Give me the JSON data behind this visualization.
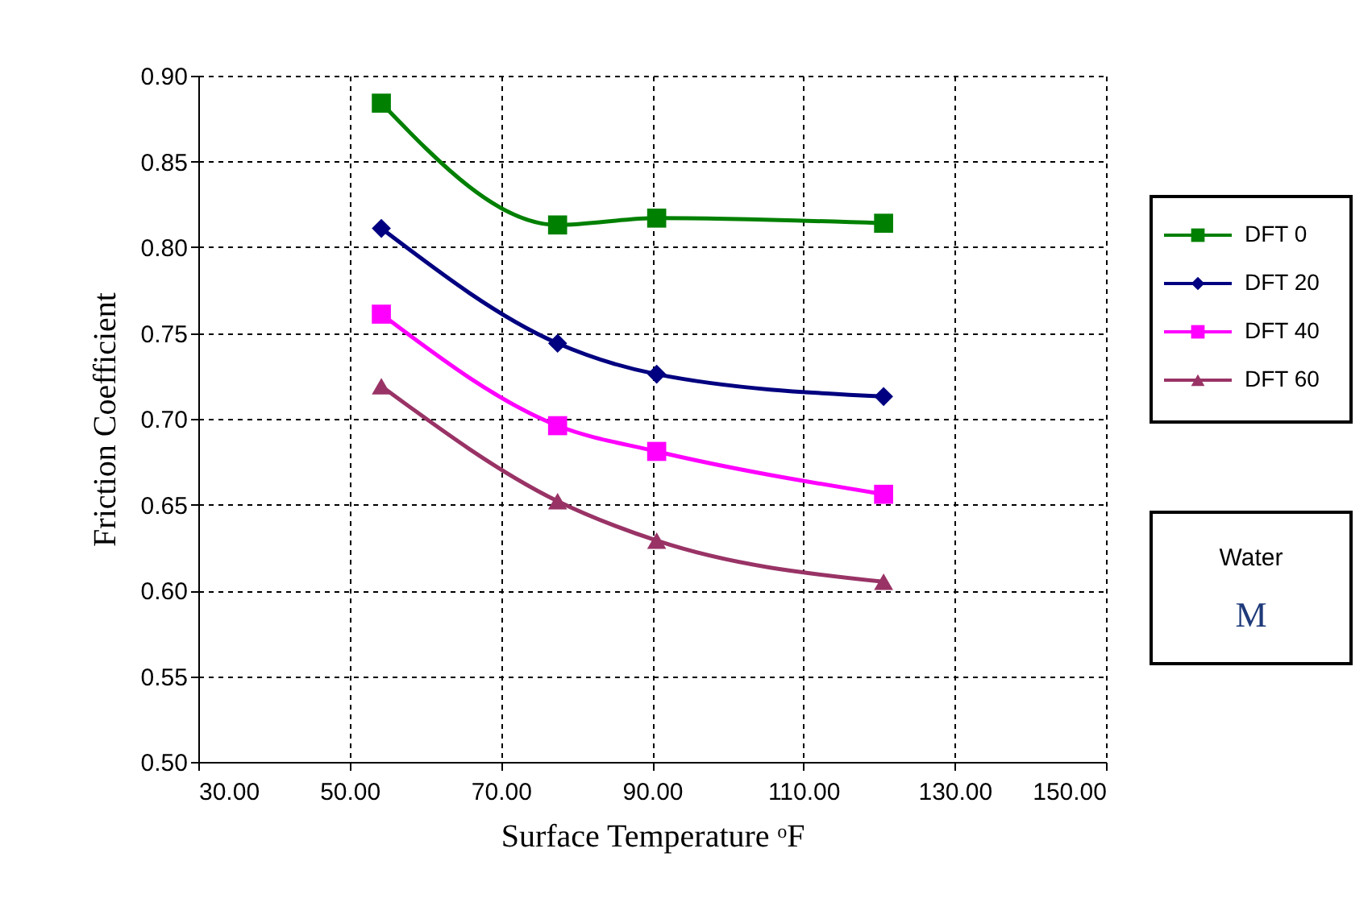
{
  "chart_data": {
    "type": "line",
    "xlabel": "Surface Temperature ᵒF",
    "ylabel": "Friction Coefficient",
    "x": [
      54.2,
      77.5,
      90.6,
      120.6
    ],
    "series": [
      {
        "name": "DFT 0",
        "color": "#008000",
        "marker": "square",
        "values": [
          0.884,
          0.813,
          0.817,
          0.814
        ]
      },
      {
        "name": "DFT 20",
        "color": "#000080",
        "marker": "diamond",
        "values": [
          0.811,
          0.744,
          0.726,
          0.713
        ]
      },
      {
        "name": "DFT 40",
        "color": "#ff00ff",
        "marker": "square",
        "values": [
          0.761,
          0.696,
          0.681,
          0.656
        ]
      },
      {
        "name": "DFT 60",
        "color": "#993366",
        "marker": "triangle",
        "values": [
          0.719,
          0.652,
          0.629,
          0.605
        ]
      }
    ],
    "xlim": [
      30,
      150
    ],
    "xticks": [
      {
        "value": 30,
        "label": "30.00"
      },
      {
        "value": 50,
        "label": "50.00"
      },
      {
        "value": 70,
        "label": "70.00"
      },
      {
        "value": 90,
        "label": "90.00"
      },
      {
        "value": 110,
        "label": "110.00"
      },
      {
        "value": 130,
        "label": "130.00"
      },
      {
        "value": 150,
        "label": "150.00"
      }
    ],
    "ylim": [
      0.5,
      0.9
    ],
    "yticks": [
      {
        "value": 0.5,
        "label": "0.50"
      },
      {
        "value": 0.55,
        "label": "0.55"
      },
      {
        "value": 0.6,
        "label": "0.60"
      },
      {
        "value": 0.65,
        "label": "0.65"
      },
      {
        "value": 0.7,
        "label": "0.70"
      },
      {
        "value": 0.75,
        "label": "0.75"
      },
      {
        "value": 0.8,
        "label": "0.80"
      },
      {
        "value": 0.85,
        "label": "0.85"
      },
      {
        "value": 0.9,
        "label": "0.90"
      }
    ],
    "grid": true,
    "legend": "right",
    "line_style": "solid",
    "annotations": [
      "Water",
      "M"
    ]
  }
}
